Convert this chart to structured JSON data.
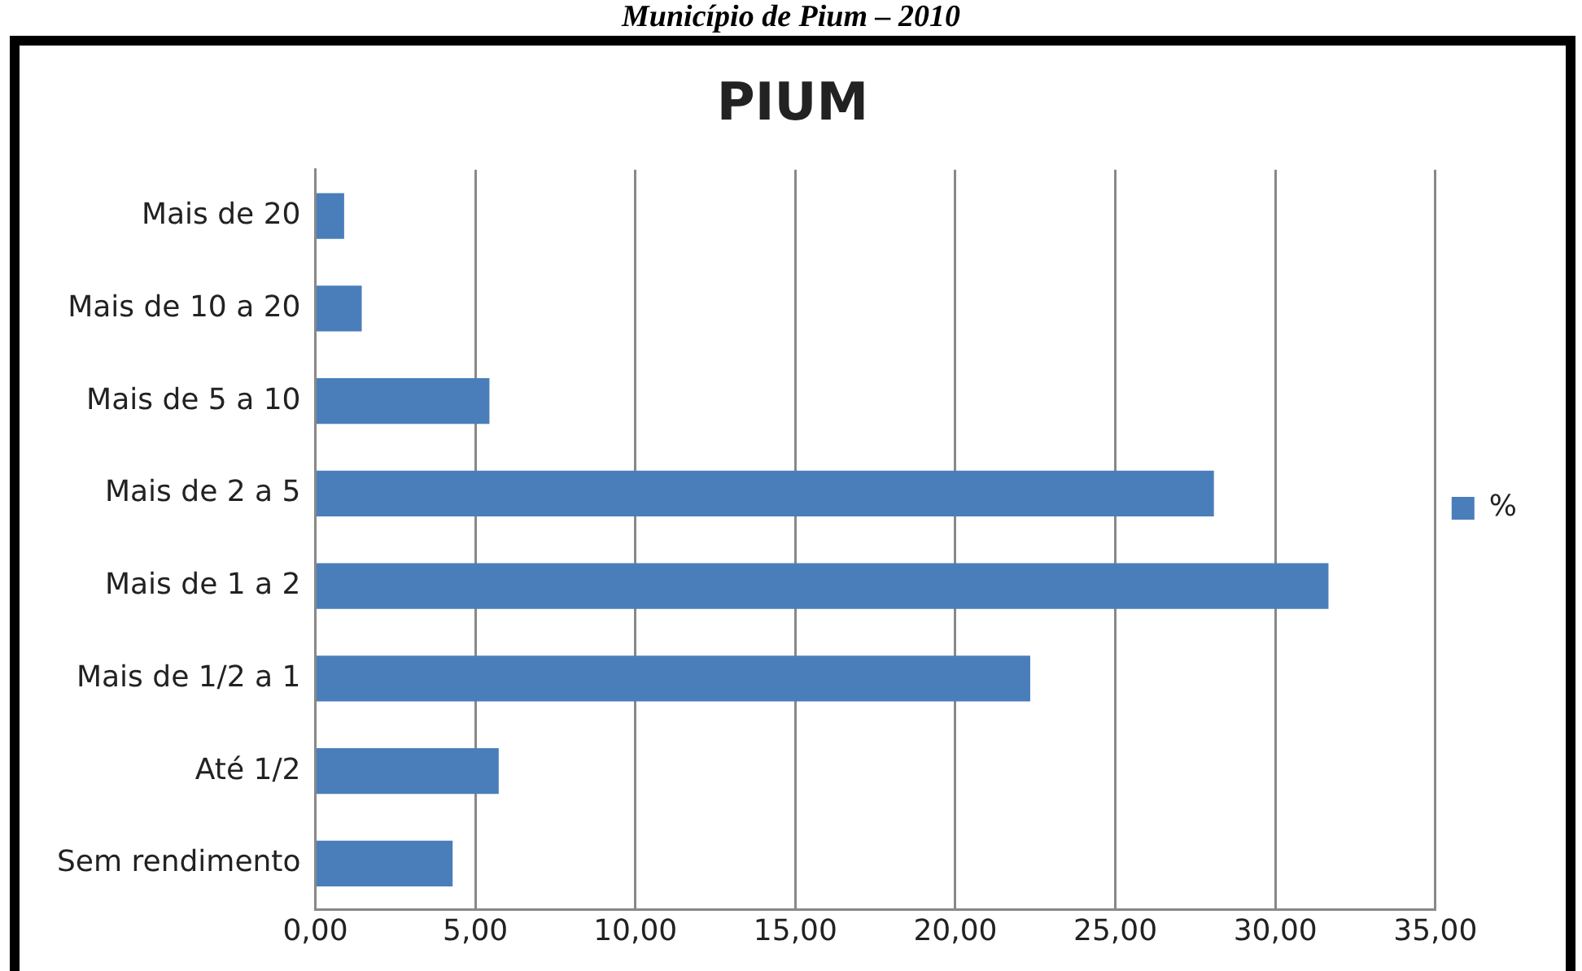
{
  "chart_data": {
    "type": "bar",
    "orientation": "horizontal",
    "title": "PIUM",
    "annotations": [
      "Município de Pium – 2010"
    ],
    "categories": [
      "Mais de 20",
      "Mais de 10 a 20",
      "Mais de 5 a 10",
      "Mais de 2 a 5",
      "Mais de 1 a 2",
      "Mais de 1/2 a 1",
      "Até 1/2",
      "Sem rendimento"
    ],
    "series": [
      {
        "name": "%",
        "color": "#4a7ebb",
        "values": [
          0.9,
          1.45,
          5.44,
          28.08,
          31.66,
          22.34,
          5.73,
          4.29
        ]
      }
    ],
    "xlim": [
      0,
      35
    ],
    "xticks": [
      {
        "value": 0,
        "label": "0,00"
      },
      {
        "value": 5,
        "label": "5,00"
      },
      {
        "value": 10,
        "label": "10,00"
      },
      {
        "value": 15,
        "label": "15,00"
      },
      {
        "value": 20,
        "label": "20,00"
      },
      {
        "value": 25,
        "label": "25,00"
      },
      {
        "value": 30,
        "label": "30,00"
      },
      {
        "value": 35,
        "label": "35,00"
      }
    ],
    "grid": "x",
    "legend": "right"
  }
}
